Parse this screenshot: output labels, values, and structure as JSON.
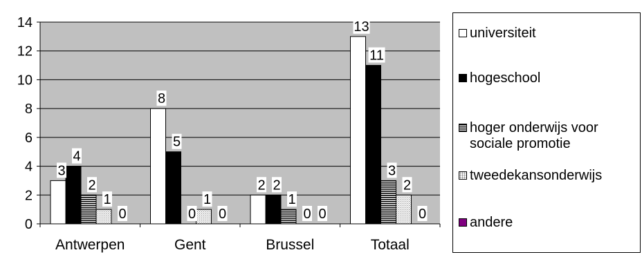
{
  "chart_data": {
    "type": "bar",
    "categories": [
      "Antwerpen",
      "Gent",
      "Brussel",
      "Totaal"
    ],
    "series": [
      {
        "name": "universiteit",
        "values": [
          3,
          8,
          2,
          13
        ],
        "labels": [
          "3",
          "8",
          "2",
          "13"
        ],
        "color": "#ffffff",
        "pattern": "solid-white"
      },
      {
        "name": "hogeschool",
        "values": [
          4,
          5,
          2,
          11
        ],
        "labels": [
          "4",
          "5",
          "2",
          "11"
        ],
        "color": "#000000",
        "pattern": "solid-black"
      },
      {
        "name": "hoger onderwijs voor sociale promotie",
        "values": [
          2,
          0,
          1,
          3
        ],
        "labels": [
          "2",
          "0",
          "1",
          "3"
        ],
        "color": "#808080",
        "pattern": "horizontal-lines"
      },
      {
        "name": "tweedekansonderwijs",
        "values": [
          1,
          1,
          0,
          2
        ],
        "labels": [
          "1",
          "1",
          "0",
          "2"
        ],
        "color": "#d4d4d4",
        "pattern": "dots"
      },
      {
        "name": "andere",
        "values": [
          0,
          0,
          0,
          0
        ],
        "labels": [
          "0",
          "0",
          "0",
          "0"
        ],
        "color": "#800080",
        "pattern": "solid-purple"
      }
    ],
    "ylim": [
      0,
      14
    ],
    "yticks": [
      "0",
      "2",
      "4",
      "6",
      "8",
      "10",
      "12",
      "14"
    ],
    "grid": true,
    "plot_background": "#c0c0c0",
    "legend_position": "right",
    "title": "",
    "xlabel": "",
    "ylabel": ""
  },
  "legend": {
    "items": [
      {
        "label": "universiteit",
        "swatch": "solid-white"
      },
      {
        "label": "hogeschool",
        "swatch": "solid-black"
      },
      {
        "label_line1": "hoger onderwijs voor",
        "label_line2": "sociale promotie",
        "swatch": "horizontal-lines"
      },
      {
        "label": "tweedekansonderwijs",
        "swatch": "dots"
      },
      {
        "label": "andere",
        "swatch": "solid-purple"
      }
    ]
  }
}
